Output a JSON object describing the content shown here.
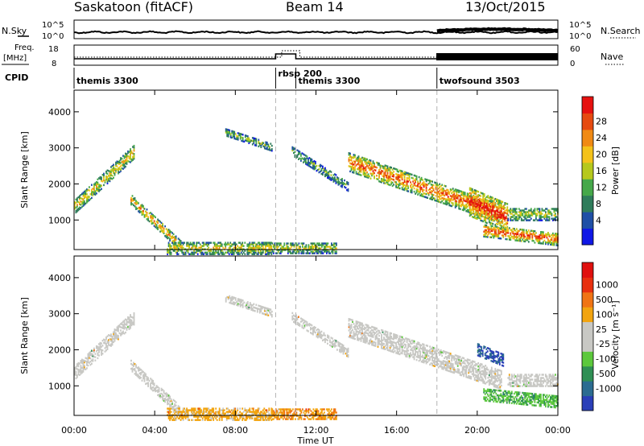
{
  "header": {
    "station": "Saskatoon (fitACF)",
    "beam": "Beam 14",
    "date": "13/Oct/2015"
  },
  "top_panels": {
    "nsky_label": "N.Sky",
    "nsearch_label": "N.Search",
    "noise_ticks_left": [
      "10^5",
      "10^0"
    ],
    "noise_ticks_right": [
      "10^5",
      "10^0"
    ],
    "freq_label_1": "Freq.",
    "freq_label_2": "[MHz]",
    "freq_ticks": [
      "18",
      "8"
    ],
    "nave_label": "Nave",
    "nave_ticks": [
      "60",
      "0"
    ],
    "cpid_label": "CPID"
  },
  "cpid_segments": [
    {
      "name": "themis 3300",
      "start_h": 0
    },
    {
      "name": "rbsp 200",
      "start_h": 10
    },
    {
      "name": "themis 3300",
      "start_h": 11
    },
    {
      "name": "twofsound 3503",
      "start_h": 18
    }
  ],
  "chart_data": [
    {
      "type": "heatmap",
      "quantity": "Power",
      "ylabel": "Slant Range [km]",
      "xlabel": "Time UT",
      "xlim_h": [
        0,
        24
      ],
      "ylim_km": [
        180,
        4600
      ],
      "y_ticks": [
        1000,
        2000,
        3000,
        4000
      ],
      "x_tick_labels": [
        "00:00",
        "04:00",
        "08:00",
        "12:00",
        "16:00",
        "20:00",
        "00:00"
      ],
      "colorbar_title": "Power [dB]",
      "colorbar_ticks": [
        "4",
        "8",
        "12",
        "16",
        "20",
        "24",
        "28"
      ],
      "colorbar_colors": [
        "#0f17e6",
        "#1f4fa6",
        "#2f7c5b",
        "#46a84a",
        "#b6c81c",
        "#f4c21a",
        "#f08a14",
        "#e64a10",
        "#e6110f"
      ],
      "echo_regions": [
        {
          "t0": 0.0,
          "t1": 3.0,
          "r0_start": 1350,
          "r0_end": 2900,
          "thickness": 380,
          "level": 0.6
        },
        {
          "t0": 2.8,
          "t1": 5.3,
          "r0_start": 1550,
          "r0_end": 250,
          "thickness": 280,
          "level": 0.7
        },
        {
          "t0": 4.6,
          "t1": 9.8,
          "r0_start": 210,
          "r0_end": 210,
          "thickness": 350,
          "level": 0.55
        },
        {
          "t0": 7.5,
          "t1": 9.8,
          "r0_start": 3420,
          "r0_end": 3000,
          "thickness": 200,
          "level": 0.4
        },
        {
          "t0": 9.8,
          "t1": 13.0,
          "r0_start": 210,
          "r0_end": 210,
          "thickness": 300,
          "level": 0.5
        },
        {
          "t0": 10.8,
          "t1": 13.6,
          "r0_start": 2900,
          "r0_end": 1900,
          "thickness": 250,
          "level": 0.35
        },
        {
          "t0": 13.6,
          "t1": 21.2,
          "r0_start": 2600,
          "r0_end": 1150,
          "thickness": 520,
          "level": 0.82
        },
        {
          "t0": 19.6,
          "t1": 21.5,
          "r0_start": 1500,
          "r0_end": 1050,
          "thickness": 800,
          "level": 0.95
        },
        {
          "t0": 20.3,
          "t1": 24.0,
          "r0_start": 700,
          "r0_end": 450,
          "thickness": 350,
          "level": 0.85
        },
        {
          "t0": 21.5,
          "t1": 24.0,
          "r0_start": 1150,
          "r0_end": 1150,
          "thickness": 350,
          "level": 0.5
        }
      ]
    },
    {
      "type": "heatmap",
      "quantity": "Velocity",
      "ylabel": "Slant Range [km]",
      "xlabel": "Time UT",
      "xlim_h": [
        0,
        24
      ],
      "ylim_km": [
        180,
        4600
      ],
      "y_ticks": [
        1000,
        2000,
        3000,
        4000
      ],
      "x_tick_labels": [
        "00:00",
        "04:00",
        "08:00",
        "12:00",
        "16:00",
        "20:00",
        "00:00"
      ],
      "colorbar_title": "Velocity [m s⁻¹]",
      "colorbar_ticks": [
        "1000",
        "500",
        "100",
        "25",
        "-25",
        "-100",
        "-500",
        "-1000"
      ],
      "colorbar_colors": [
        "#2a3fb8",
        "#2c6c91",
        "#2f8f54",
        "#5cc83c",
        "#c8c8c4",
        "#c8c8c4",
        "#f2a40f",
        "#f07414",
        "#e8300e",
        "#e0100e"
      ],
      "echo_regions": [
        {
          "t0": 0.0,
          "t1": 3.0,
          "r0_start": 1350,
          "r0_end": 2900,
          "thickness": 380,
          "level": 0.48
        },
        {
          "t0": 2.8,
          "t1": 5.3,
          "r0_start": 1550,
          "r0_end": 250,
          "thickness": 280,
          "level": 0.46
        },
        {
          "t0": 4.6,
          "t1": 9.8,
          "r0_start": 210,
          "r0_end": 210,
          "thickness": 350,
          "level": 0.65
        },
        {
          "t0": 7.5,
          "t1": 9.8,
          "r0_start": 3420,
          "r0_end": 3000,
          "thickness": 200,
          "level": 0.5
        },
        {
          "t0": 9.8,
          "t1": 13.0,
          "r0_start": 210,
          "r0_end": 210,
          "thickness": 300,
          "level": 0.7
        },
        {
          "t0": 10.8,
          "t1": 13.6,
          "r0_start": 2900,
          "r0_end": 1900,
          "thickness": 250,
          "level": 0.5
        },
        {
          "t0": 13.6,
          "t1": 21.2,
          "r0_start": 2600,
          "r0_end": 1150,
          "thickness": 520,
          "level": 0.5
        },
        {
          "t0": 20.0,
          "t1": 21.3,
          "r0_start": 2000,
          "r0_end": 1700,
          "thickness": 350,
          "level": 0.05
        },
        {
          "t0": 20.3,
          "t1": 24.0,
          "r0_start": 750,
          "r0_end": 550,
          "thickness": 350,
          "level": 0.3
        },
        {
          "t0": 21.5,
          "t1": 24.0,
          "r0_start": 1150,
          "r0_end": 1150,
          "thickness": 350,
          "level": 0.5
        }
      ]
    }
  ]
}
